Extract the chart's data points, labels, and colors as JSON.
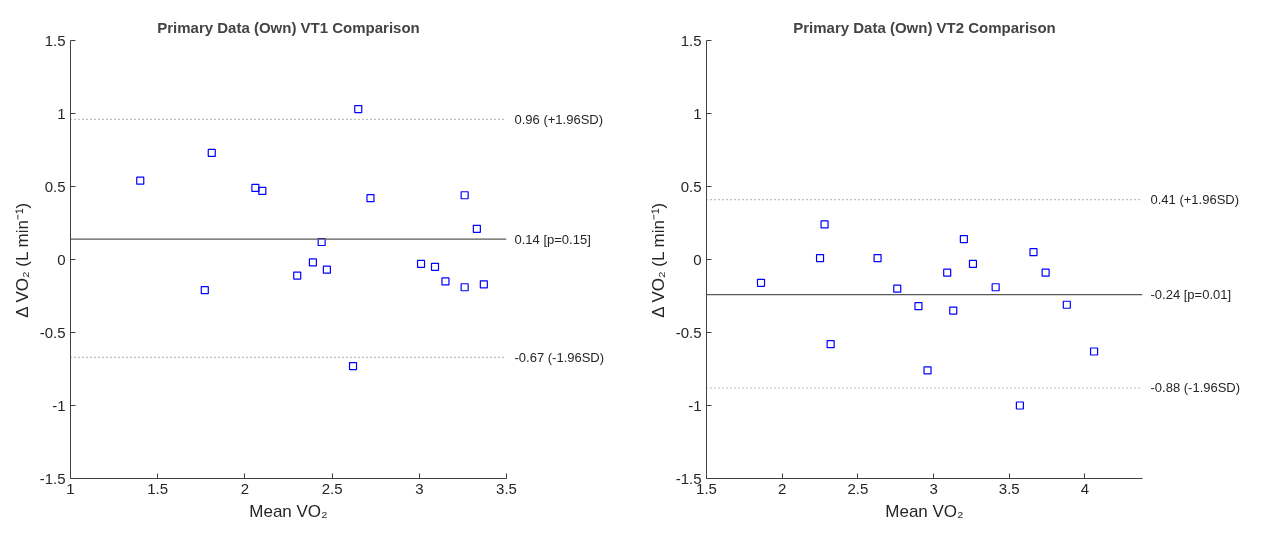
{
  "chart_data": [
    {
      "type": "scatter",
      "title": "Primary Data (Own) VT1 Comparison",
      "xlabel": "Mean VO₂",
      "ylabel": "Δ VO₂ (L min⁻¹)",
      "marker": "square",
      "grid": false,
      "xlim": [
        1,
        3.5
      ],
      "ylim": [
        -1.5,
        1.5
      ],
      "xticks": [
        1,
        1.5,
        2,
        2.5,
        3,
        3.5
      ],
      "yticks": [
        -1.5,
        -1,
        -0.5,
        0,
        0.5,
        1,
        1.5
      ],
      "series": [
        {
          "color": "#0000ff",
          "x": [
            1.4,
            1.81,
            2.06,
            2.1,
            2.65,
            2.72,
            3.26,
            3.33,
            2.44,
            2.39,
            2.47,
            2.3,
            3.01,
            3.09,
            3.15,
            3.26,
            3.37,
            1.77,
            2.62
          ],
          "values": [
            0.54,
            0.73,
            0.49,
            0.47,
            1.03,
            0.42,
            0.44,
            0.21,
            0.12,
            -0.02,
            -0.07,
            -0.11,
            -0.03,
            -0.05,
            -0.15,
            -0.19,
            -0.17,
            -0.21,
            -0.73
          ]
        }
      ],
      "ref_lines": [
        {
          "axis": "y",
          "value": 0.96,
          "label": "0.96 (+1.96SD)",
          "color": "#808080",
          "line_style": "dotted"
        },
        {
          "axis": "y",
          "value": 0.14,
          "label": "0.14 [p=0.15]",
          "color": "#595959",
          "line_style": "solid"
        },
        {
          "axis": "y",
          "value": -0.67,
          "label": "-0.67 (-1.96SD)",
          "color": "#808080",
          "line_style": "dotted"
        }
      ]
    },
    {
      "type": "scatter",
      "title": "Primary Data (Own) VT2 Comparison",
      "xlabel": "Mean VO₂",
      "ylabel": "Δ VO₂ (L min⁻¹)",
      "marker": "square",
      "grid": false,
      "xlim": [
        1.5,
        4.38
      ],
      "ylim": [
        -1.5,
        1.5
      ],
      "xticks": [
        1.5,
        2,
        2.5,
        3,
        3.5,
        4
      ],
      "yticks": [
        -1.5,
        -1,
        -0.5,
        0,
        0.5,
        1,
        1.5
      ],
      "series": [
        {
          "color": "#0000ff",
          "x": [
            1.86,
            2.25,
            2.28,
            2.32,
            2.63,
            2.76,
            2.9,
            2.96,
            3.09,
            3.13,
            3.2,
            3.26,
            3.41,
            3.57,
            3.66,
            3.74,
            3.88,
            4.06
          ],
          "values": [
            -0.16,
            0.01,
            0.24,
            -0.58,
            0.01,
            -0.2,
            -0.32,
            -0.76,
            -0.09,
            -0.35,
            0.14,
            -0.03,
            -0.19,
            -1.0,
            0.05,
            -0.09,
            -0.31,
            -0.63
          ]
        }
      ],
      "ref_lines": [
        {
          "axis": "y",
          "value": 0.41,
          "label": "0.41 (+1.96SD)",
          "color": "#808080",
          "line_style": "dotted"
        },
        {
          "axis": "y",
          "value": -0.24,
          "label": "-0.24 [p=0.01]",
          "color": "#595959",
          "line_style": "solid"
        },
        {
          "axis": "y",
          "value": -0.88,
          "label": "-0.88 (-1.96SD)",
          "color": "#808080",
          "line_style": "dotted"
        }
      ]
    }
  ]
}
